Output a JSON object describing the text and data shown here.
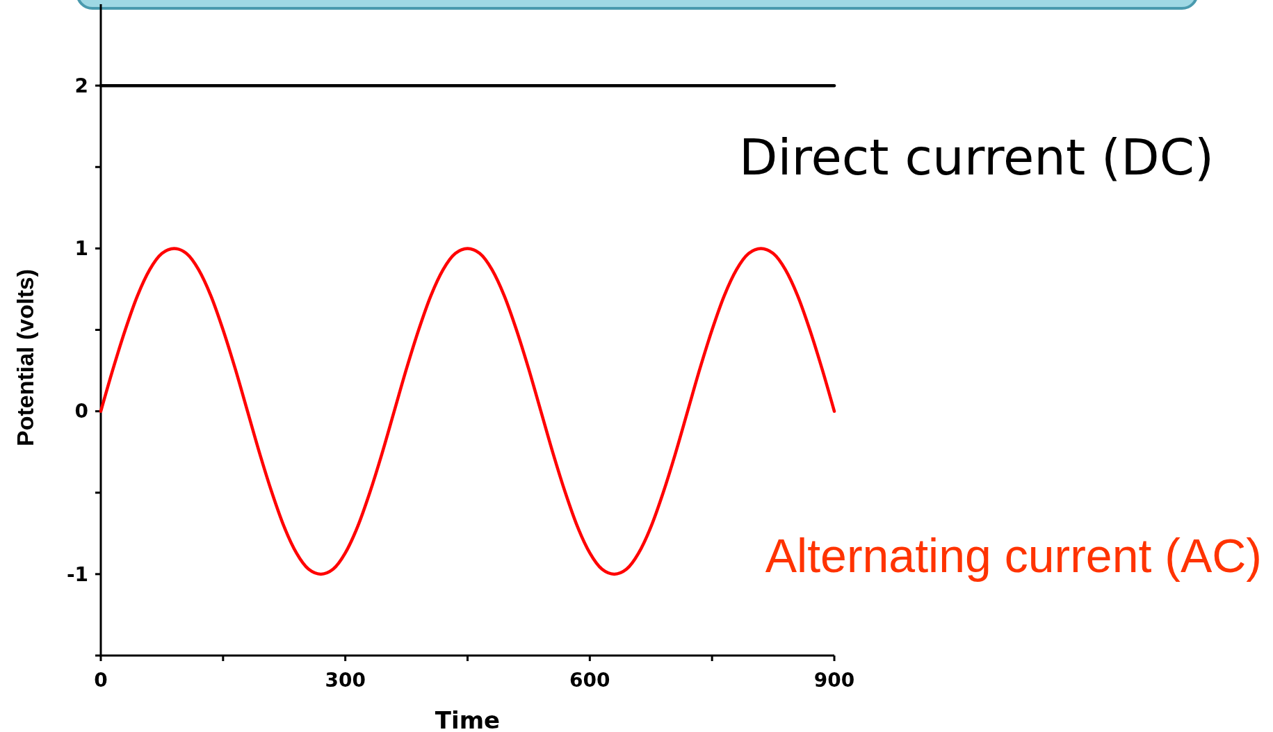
{
  "chart_data": {
    "type": "line",
    "xlabel": "Time",
    "ylabel": "Potential (volts)",
    "xlim": [
      0,
      900
    ],
    "ylim": [
      -1.5,
      2.5
    ],
    "xticks": [
      0,
      {
        "value": 150,
        "label": null
      },
      300,
      {
        "value": 450,
        "label": null
      },
      600,
      {
        "value": 750,
        "label": null
      },
      900
    ],
    "yticks": [
      {
        "value": -1.5,
        "label": null
      },
      -1,
      {
        "value": -0.5,
        "label": null
      },
      0,
      {
        "value": 0.5,
        "label": null
      },
      1,
      {
        "value": 1.5,
        "label": null
      },
      2
    ],
    "grid": false,
    "legend": false,
    "marker": "none",
    "line_style": "solid",
    "series": [
      {
        "name": "Direct current (DC)",
        "color": "#000000",
        "x": [
          0,
          900
        ],
        "values": [
          2,
          2
        ]
      },
      {
        "name": "Alternating current (AC)",
        "color": "#ff0000",
        "x": [
          0,
          15,
          30,
          45,
          60,
          75,
          90,
          105,
          120,
          135,
          150,
          165,
          180,
          195,
          210,
          225,
          240,
          255,
          270,
          285,
          300,
          315,
          330,
          345,
          360,
          375,
          390,
          405,
          420,
          435,
          450,
          465,
          480,
          495,
          510,
          525,
          540,
          555,
          570,
          585,
          600,
          615,
          630,
          645,
          660,
          675,
          690,
          705,
          720,
          735,
          750,
          765,
          780,
          795,
          810,
          825,
          840,
          855,
          870,
          885,
          900
        ],
        "values": [
          0,
          0.26,
          0.5,
          0.71,
          0.87,
          0.97,
          1,
          0.97,
          0.87,
          0.71,
          0.5,
          0.26,
          0,
          -0.26,
          -0.5,
          -0.71,
          -0.87,
          -0.97,
          -1,
          -0.97,
          -0.87,
          -0.71,
          -0.5,
          -0.26,
          0,
          0.26,
          0.5,
          0.71,
          0.87,
          0.97,
          1,
          0.97,
          0.87,
          0.71,
          0.5,
          0.26,
          0,
          -0.26,
          -0.5,
          -0.71,
          -0.87,
          -0.97,
          -1,
          -0.97,
          -0.87,
          -0.71,
          -0.5,
          -0.26,
          0,
          0.26,
          0.5,
          0.71,
          0.87,
          0.97,
          1,
          0.97,
          0.87,
          0.71,
          0.5,
          0.26,
          0
        ]
      }
    ]
  }
}
